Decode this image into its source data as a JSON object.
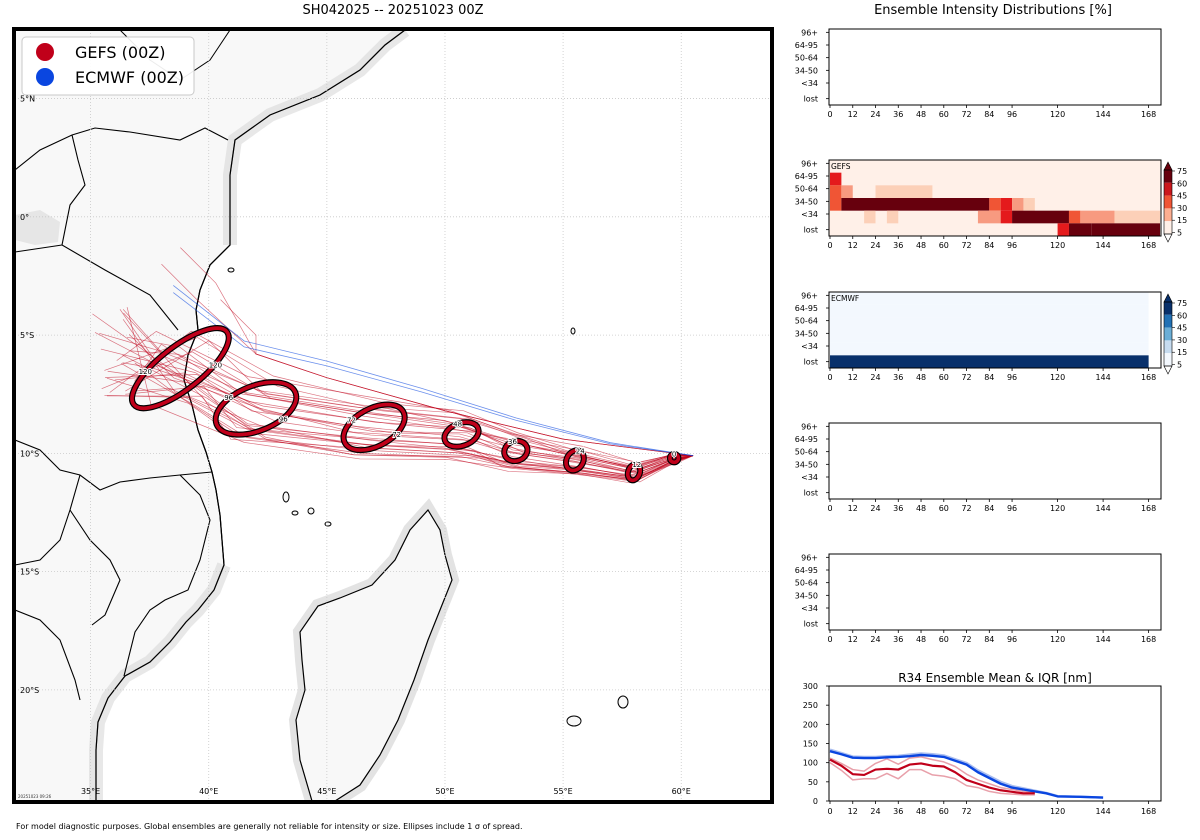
{
  "title": "SH042025 -- 20251023 00Z",
  "panel_title": "Ensemble Intensity Distributions [%]",
  "footnote": "For model diagnostic purposes. Global ensembles are generally not reliable for intensity or size. Ellipses include 1 σ of spread.",
  "timestamp": "20251023 09:26",
  "colors": {
    "gefs": "#c0001a",
    "ecmwf": "#0a46e0",
    "land": "#f8f8f8",
    "ocean": "#ffffff"
  },
  "map": {
    "legend": [
      {
        "label": "GEFS (00Z)",
        "color": "#c0001a"
      },
      {
        "label": "ECMWF (00Z)",
        "color": "#0a46e0"
      }
    ],
    "lon_labels": [
      "35°E",
      "40°E",
      "45°E",
      "50°E",
      "55°E",
      "60°E"
    ],
    "lat_labels": [
      "5°N",
      "0°",
      "5°S",
      "10°S",
      "15°S",
      "20°S"
    ],
    "lon_range": [
      31.8,
      63.8
    ],
    "lat_range": [
      7.9,
      -24.7
    ],
    "ellipses": [
      {
        "hour": "0",
        "lon": 59.7,
        "lat": -10.2,
        "rx": 0.18,
        "ry": 0.18,
        "angle": 0
      },
      {
        "hour": "12",
        "lon": 58.0,
        "lat": -10.8,
        "rx": 0.25,
        "ry": 0.35,
        "angle": 20
      },
      {
        "hour": "24",
        "lon": 55.5,
        "lat": -10.3,
        "rx": 0.35,
        "ry": 0.45,
        "angle": 30
      },
      {
        "hour": "36",
        "lon": 53.0,
        "lat": -9.9,
        "rx": 0.5,
        "ry": 0.42,
        "angle": -20
      },
      {
        "hour": "48",
        "lon": 50.7,
        "lat": -9.2,
        "rx": 0.75,
        "ry": 0.48,
        "angle": -20
      },
      {
        "hour": "72",
        "lon": 47.0,
        "lat": -8.9,
        "rx": 1.4,
        "ry": 0.8,
        "angle": -28
      },
      {
        "hour": "96",
        "lon": 42.0,
        "lat": -8.1,
        "rx": 1.8,
        "ry": 0.95,
        "angle": -22
      },
      {
        "hour": "120",
        "lon": 38.8,
        "lat": -6.4,
        "rx": 2.5,
        "ry": 0.9,
        "angle": -38
      }
    ],
    "gefs_mean_track": [
      [
        60.5,
        -10.1
      ],
      [
        59.7,
        -10.2
      ],
      [
        58.0,
        -10.8
      ],
      [
        55.5,
        -10.3
      ],
      [
        53.0,
        -9.9
      ],
      [
        50.7,
        -9.2
      ],
      [
        47.0,
        -8.9
      ],
      [
        42.0,
        -8.1
      ],
      [
        38.8,
        -6.4
      ]
    ],
    "ecmwf_track": [
      [
        60.5,
        -10.1
      ],
      [
        57.0,
        -9.6
      ],
      [
        53.0,
        -8.6
      ],
      [
        49.0,
        -7.4
      ],
      [
        45.0,
        -6.3
      ],
      [
        41.5,
        -5.5
      ],
      [
        38.5,
        -3.2
      ]
    ]
  },
  "chart_data": [
    {
      "type": "heatmap",
      "name": "intensity-blank-1",
      "label": "",
      "rows": [
        "96+",
        "64-95",
        "50-64",
        "34-50",
        "<34",
        "lost"
      ],
      "x_ticks": [
        "0",
        "12",
        "24",
        "36",
        "48",
        "60",
        "72",
        "84",
        "96",
        "120",
        "144",
        "168"
      ],
      "values": []
    },
    {
      "type": "heatmap",
      "name": "intensity-gefs",
      "label": "GEFS",
      "rows": [
        "96+",
        "64-95",
        "50-64",
        "34-50",
        "<34",
        "lost"
      ],
      "x_ticks": [
        "0",
        "12",
        "24",
        "36",
        "48",
        "60",
        "72",
        "84",
        "96",
        "120",
        "144",
        "168"
      ],
      "colorbar_ticks": [
        "75",
        "60",
        "45",
        "30",
        "15",
        "5"
      ],
      "cells": [
        {
          "h0": 0,
          "h1": 6,
          "row": "64-95",
          "v": 60
        },
        {
          "h0": 0,
          "h1": 6,
          "row": "50-64",
          "v": 45
        },
        {
          "h0": 6,
          "h1": 12,
          "row": "50-64",
          "v": 30
        },
        {
          "h0": 0,
          "h1": 6,
          "row": "34-50",
          "v": 45
        },
        {
          "h0": 24,
          "h1": 54,
          "row": "50-64",
          "v": 15
        },
        {
          "h0": 6,
          "h1": 84,
          "row": "34-50",
          "v": 90
        },
        {
          "h0": 84,
          "h1": 90,
          "row": "34-50",
          "v": 50
        },
        {
          "h0": 90,
          "h1": 96,
          "row": "34-50",
          "v": 75
        },
        {
          "h0": 96,
          "h1": 102,
          "row": "34-50",
          "v": 30
        },
        {
          "h0": 102,
          "h1": 108,
          "row": "34-50",
          "v": 15
        },
        {
          "h0": 18,
          "h1": 24,
          "row": "<34",
          "v": 15
        },
        {
          "h0": 30,
          "h1": 36,
          "row": "<34",
          "v": 15
        },
        {
          "h0": 78,
          "h1": 90,
          "row": "<34",
          "v": 30
        },
        {
          "h0": 90,
          "h1": 96,
          "row": "<34",
          "v": 75
        },
        {
          "h0": 96,
          "h1": 126,
          "row": "<34",
          "v": 90
        },
        {
          "h0": 126,
          "h1": 132,
          "row": "<34",
          "v": 50
        },
        {
          "h0": 132,
          "h1": 150,
          "row": "<34",
          "v": 30
        },
        {
          "h0": 150,
          "h1": 174,
          "row": "<34",
          "v": 10
        },
        {
          "h0": 120,
          "h1": 126,
          "row": "lost",
          "v": 70
        },
        {
          "h0": 126,
          "h1": 138,
          "row": "lost",
          "v": 80
        },
        {
          "h0": 138,
          "h1": 174,
          "row": "lost",
          "v": 90
        }
      ]
    },
    {
      "type": "heatmap",
      "name": "intensity-ecmwf",
      "label": "ECMWF",
      "rows": [
        "96+",
        "64-95",
        "50-64",
        "34-50",
        "<34",
        "lost"
      ],
      "x_ticks": [
        "0",
        "12",
        "24",
        "36",
        "48",
        "60",
        "72",
        "84",
        "96",
        "120",
        "144",
        "168"
      ],
      "colorbar_ticks": [
        "75",
        "60",
        "45",
        "30",
        "15",
        "5"
      ],
      "cells": [
        {
          "h0": 0,
          "h1": 168,
          "row": "96+",
          "v": 2
        },
        {
          "h0": 0,
          "h1": 168,
          "row": "64-95",
          "v": 2
        },
        {
          "h0": 0,
          "h1": 168,
          "row": "50-64",
          "v": 2
        },
        {
          "h0": 0,
          "h1": 168,
          "row": "34-50",
          "v": 2
        },
        {
          "h0": 0,
          "h1": 168,
          "row": "<34",
          "v": 2
        },
        {
          "h0": 0,
          "h1": 168,
          "row": "lost",
          "v": 100
        }
      ]
    },
    {
      "type": "heatmap",
      "name": "intensity-blank-4",
      "label": "",
      "rows": [
        "96+",
        "64-95",
        "50-64",
        "34-50",
        "<34",
        "lost"
      ],
      "x_ticks": [
        "0",
        "12",
        "24",
        "36",
        "48",
        "60",
        "72",
        "84",
        "96",
        "120",
        "144",
        "168"
      ],
      "values": []
    },
    {
      "type": "heatmap",
      "name": "intensity-blank-5",
      "label": "",
      "rows": [
        "96+",
        "64-95",
        "50-64",
        "34-50",
        "<34",
        "lost"
      ],
      "x_ticks": [
        "0",
        "12",
        "24",
        "36",
        "48",
        "60",
        "72",
        "84",
        "96",
        "120",
        "144",
        "168"
      ],
      "values": []
    },
    {
      "type": "line",
      "name": "r34",
      "title": "R34 Ensemble Mean & IQR [nm]",
      "x_ticks": [
        "0",
        "12",
        "24",
        "36",
        "48",
        "60",
        "72",
        "84",
        "96",
        "120",
        "144",
        "168"
      ],
      "y_ticks": [
        "0",
        "50",
        "100",
        "150",
        "200",
        "250",
        "300"
      ],
      "ylim": [
        0,
        300
      ],
      "series": [
        {
          "name": "GEFS mean",
          "color": "#c0001a",
          "x": [
            0,
            6,
            12,
            18,
            24,
            30,
            36,
            42,
            48,
            54,
            60,
            66,
            72,
            78,
            84,
            90,
            96,
            102,
            108
          ],
          "values": [
            108,
            92,
            70,
            68,
            82,
            84,
            82,
            95,
            98,
            92,
            90,
            75,
            55,
            45,
            35,
            28,
            24,
            20,
            20
          ]
        },
        {
          "name": "GEFS IQR low",
          "color": "#e8a0aa",
          "x": [
            0,
            6,
            12,
            18,
            24,
            30,
            36,
            42,
            48,
            54,
            60,
            66,
            72,
            78,
            84,
            90,
            96,
            102,
            108
          ],
          "values": [
            100,
            80,
            55,
            58,
            58,
            72,
            58,
            82,
            82,
            68,
            65,
            58,
            40,
            35,
            25,
            20,
            18,
            16,
            16
          ]
        },
        {
          "name": "GEFS IQR high",
          "color": "#e8a0aa",
          "x": [
            0,
            6,
            12,
            18,
            24,
            30,
            36,
            42,
            48,
            54,
            60,
            66,
            72,
            78,
            84,
            90,
            96,
            102,
            108
          ],
          "values": [
            112,
            98,
            82,
            78,
            98,
            110,
            96,
            112,
            115,
            108,
            102,
            90,
            70,
            55,
            45,
            35,
            30,
            25,
            22
          ]
        },
        {
          "name": "ECMWF mean",
          "color": "#0a46e0",
          "x": [
            0,
            6,
            12,
            18,
            24,
            30,
            36,
            42,
            48,
            54,
            60,
            66,
            72,
            78,
            84,
            90,
            96,
            102,
            108,
            114,
            120,
            132,
            144
          ],
          "values": [
            130,
            122,
            113,
            112,
            112,
            114,
            115,
            117,
            120,
            118,
            115,
            105,
            95,
            75,
            60,
            45,
            35,
            30,
            25,
            20,
            12,
            11,
            9
          ]
        },
        {
          "name": "ECMWF IQR",
          "color": "#a9bdf0",
          "x": [
            0,
            6,
            12,
            18,
            24,
            30,
            36,
            42,
            48,
            54,
            60,
            66,
            72,
            78,
            84,
            90,
            96,
            102,
            108,
            114,
            120,
            132,
            144
          ],
          "values": [
            134,
            125,
            116,
            115,
            115,
            117,
            118,
            121,
            124,
            122,
            119,
            109,
            99,
            80,
            65,
            50,
            39,
            33,
            27,
            21,
            13,
            11,
            9
          ]
        }
      ]
    }
  ]
}
